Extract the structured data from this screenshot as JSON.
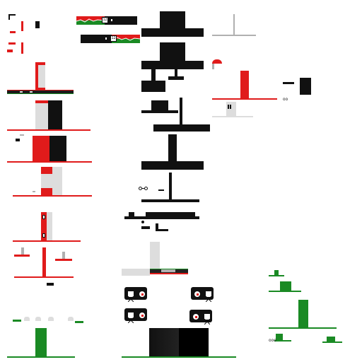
{
  "sprite_sheet": {
    "title": "",
    "colors": {
      "red": "#e01b1b",
      "black": "#111111",
      "green": "#1a8a24",
      "light_gray": "#dddddd",
      "mid_gray": "#b0b0b0",
      "white": "#ffffff"
    },
    "labels": {
      "banner_badge_top": "12",
      "banner_badge_bottom": "12",
      "tiny_dots_a": "oo",
      "tiny_dots_b": "ooo"
    },
    "groups": [
      "top-left-red-icons",
      "red-green-banners",
      "black-silhouettes",
      "red-machines",
      "green-stand-sprites",
      "control-panels"
    ]
  }
}
